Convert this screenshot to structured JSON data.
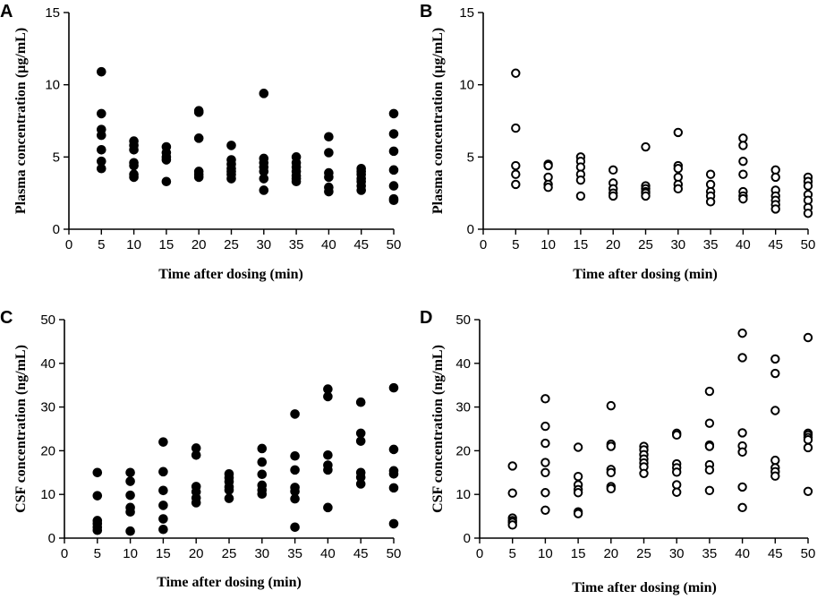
{
  "chart_data": [
    {
      "panel": "A",
      "type": "scatter",
      "marker": "filled",
      "xlabel": "Time after dosing (min)",
      "ylabel": "Plasma concentration (µg/mL)",
      "xlim": [
        0,
        50
      ],
      "ylim": [
        0,
        15
      ],
      "xticks": [
        0,
        5,
        10,
        15,
        20,
        25,
        30,
        35,
        40,
        45,
        50
      ],
      "yticks": [
        0,
        5,
        10,
        15
      ],
      "groups": [
        {
          "x": 5,
          "y": [
            10.9,
            8.0,
            6.9,
            6.5,
            5.5,
            4.7,
            4.2
          ]
        },
        {
          "x": 10,
          "y": [
            6.1,
            5.8,
            5.5,
            4.6,
            4.4,
            3.8,
            3.6
          ]
        },
        {
          "x": 15,
          "y": [
            5.7,
            5.3,
            5.0,
            4.8,
            3.3
          ]
        },
        {
          "x": 20,
          "y": [
            8.2,
            8.1,
            6.3,
            4.0,
            3.8,
            3.6
          ]
        },
        {
          "x": 25,
          "y": [
            5.8,
            4.8,
            4.5,
            4.2,
            4.0,
            3.8,
            3.5
          ]
        },
        {
          "x": 30,
          "y": [
            9.4,
            4.9,
            4.6,
            4.3,
            4.0,
            3.5,
            2.7
          ]
        },
        {
          "x": 35,
          "y": [
            5.0,
            4.6,
            4.3,
            4.0,
            3.7,
            3.5,
            3.3
          ]
        },
        {
          "x": 40,
          "y": [
            6.4,
            5.3,
            3.9,
            3.6,
            2.9,
            2.6
          ]
        },
        {
          "x": 45,
          "y": [
            4.2,
            4.0,
            3.8,
            3.5,
            3.3,
            3.0,
            2.7
          ]
        },
        {
          "x": 50,
          "y": [
            8.0,
            6.6,
            5.4,
            4.1,
            3.0,
            2.1,
            2.0
          ]
        }
      ]
    },
    {
      "panel": "B",
      "type": "scatter",
      "marker": "open",
      "xlabel": "Time after dosing (min)",
      "ylabel": "Plasma concentration (µg/mL)",
      "xlim": [
        0,
        50
      ],
      "ylim": [
        0,
        15
      ],
      "xticks": [
        0,
        5,
        10,
        15,
        20,
        25,
        30,
        35,
        40,
        45,
        50
      ],
      "yticks": [
        0,
        5,
        10,
        15
      ],
      "groups": [
        {
          "x": 5,
          "y": [
            10.8,
            7.0,
            4.4,
            3.8,
            3.1
          ]
        },
        {
          "x": 10,
          "y": [
            4.5,
            4.4,
            3.6,
            3.1,
            2.9
          ]
        },
        {
          "x": 15,
          "y": [
            5.0,
            4.7,
            4.3,
            3.8,
            3.4,
            2.3
          ]
        },
        {
          "x": 20,
          "y": [
            4.1,
            3.2,
            2.8,
            2.5,
            2.3
          ]
        },
        {
          "x": 25,
          "y": [
            5.7,
            3.0,
            2.8,
            2.6,
            2.5,
            2.3
          ]
        },
        {
          "x": 30,
          "y": [
            6.7,
            4.4,
            4.2,
            3.6,
            3.1,
            2.8
          ]
        },
        {
          "x": 35,
          "y": [
            3.8,
            3.1,
            2.6,
            2.3,
            1.9
          ]
        },
        {
          "x": 40,
          "y": [
            6.3,
            5.8,
            4.7,
            3.8,
            2.6,
            2.3,
            2.1
          ]
        },
        {
          "x": 45,
          "y": [
            4.1,
            3.6,
            2.7,
            2.3,
            2.0,
            1.7,
            1.4
          ]
        },
        {
          "x": 50,
          "y": [
            3.6,
            3.3,
            3.0,
            2.4,
            2.0,
            1.5,
            1.1
          ]
        }
      ]
    },
    {
      "panel": "C",
      "type": "scatter",
      "marker": "filled",
      "xlabel": "Time after dosing (min)",
      "ylabel": "CSF concentration (ng/mL)",
      "xlim": [
        0,
        50
      ],
      "ylim": [
        0,
        50
      ],
      "xticks": [
        0,
        5,
        10,
        15,
        20,
        25,
        30,
        35,
        40,
        45,
        50
      ],
      "yticks": [
        0,
        10,
        20,
        30,
        40,
        50
      ],
      "groups": [
        {
          "x": 5,
          "y": [
            15.0,
            9.7,
            4.0,
            3.3,
            2.5,
            1.8
          ]
        },
        {
          "x": 10,
          "y": [
            15.0,
            13.0,
            9.8,
            7.0,
            6.0,
            1.6
          ]
        },
        {
          "x": 15,
          "y": [
            22.0,
            15.2,
            10.9,
            7.5,
            4.4,
            2.0
          ]
        },
        {
          "x": 20,
          "y": [
            20.6,
            19.0,
            11.8,
            10.6,
            9.2,
            8.1
          ]
        },
        {
          "x": 25,
          "y": [
            14.7,
            13.8,
            12.9,
            11.7,
            11.0,
            9.1
          ]
        },
        {
          "x": 30,
          "y": [
            20.5,
            17.4,
            14.6,
            12.1,
            11.0,
            10.1
          ]
        },
        {
          "x": 35,
          "y": [
            28.4,
            18.8,
            15.6,
            11.6,
            10.7,
            9.0,
            2.5
          ]
        },
        {
          "x": 40,
          "y": [
            34.1,
            32.4,
            19.0,
            16.7,
            15.6,
            7.0
          ]
        },
        {
          "x": 45,
          "y": [
            31.1,
            24.0,
            22.2,
            15.0,
            13.9,
            12.4
          ]
        },
        {
          "x": 50,
          "y": [
            34.4,
            20.3,
            15.4,
            14.7,
            11.5,
            3.3
          ]
        }
      ]
    },
    {
      "panel": "D",
      "type": "scatter",
      "marker": "open",
      "xlabel": "Time after dosing (min)",
      "ylabel": "CSF concentration (ng/mL)",
      "xlim": [
        0,
        50
      ],
      "ylim": [
        0,
        50
      ],
      "xticks": [
        0,
        5,
        10,
        15,
        20,
        25,
        30,
        35,
        40,
        45,
        50
      ],
      "yticks": [
        0,
        10,
        20,
        30,
        40,
        50
      ],
      "groups": [
        {
          "x": 5,
          "y": [
            16.5,
            10.3,
            4.6,
            4.0,
            3.6,
            3.0
          ]
        },
        {
          "x": 10,
          "y": [
            31.9,
            25.6,
            21.7,
            17.3,
            15.0,
            10.4,
            6.4
          ]
        },
        {
          "x": 15,
          "y": [
            20.8,
            14.1,
            12.2,
            11.1,
            10.4,
            6.0,
            5.6
          ]
        },
        {
          "x": 20,
          "y": [
            30.3,
            21.5,
            21.0,
            15.7,
            15.0,
            11.8,
            11.3
          ]
        },
        {
          "x": 25,
          "y": [
            21.0,
            20.2,
            19.1,
            18.1,
            17.2,
            16.3,
            14.8
          ]
        },
        {
          "x": 30,
          "y": [
            24.0,
            23.6,
            17.0,
            16.1,
            15.1,
            12.2,
            10.5
          ]
        },
        {
          "x": 35,
          "y": [
            33.6,
            26.3,
            21.3,
            21.0,
            16.8,
            15.6,
            10.9
          ]
        },
        {
          "x": 40,
          "y": [
            46.9,
            41.3,
            24.1,
            21.1,
            19.7,
            11.7,
            7.0
          ]
        },
        {
          "x": 45,
          "y": [
            41.0,
            37.7,
            29.2,
            17.8,
            16.1,
            15.2,
            14.2
          ]
        },
        {
          "x": 50,
          "y": [
            45.9,
            24.0,
            23.6,
            23.0,
            22.5,
            20.7,
            10.7
          ]
        }
      ]
    }
  ]
}
